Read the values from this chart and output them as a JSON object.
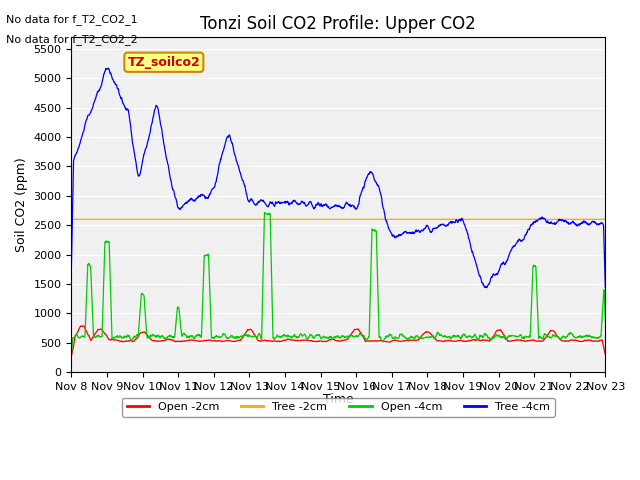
{
  "title": "Tonzi Soil CO2 Profile: Upper CO2",
  "ylabel": "Soil CO2 (ppm)",
  "xlabel": "Time",
  "annotations": [
    "No data for f_T2_CO2_1",
    "No data for f_T2_CO2_2"
  ],
  "legend_label": "TZ_soilco2",
  "legend_entries": [
    "Open -2cm",
    "Tree -2cm",
    "Open -4cm",
    "Tree -4cm"
  ],
  "legend_colors": [
    "#ff0000",
    "#ffa500",
    "#00cc00",
    "#0000ff"
  ],
  "ylim": [
    0,
    5700
  ],
  "yticks": [
    0,
    500,
    1000,
    1500,
    2000,
    2500,
    3000,
    3500,
    4000,
    4500,
    5000,
    5500
  ],
  "background_color": "#ffffff",
  "plot_bg": "#f0f0f0",
  "title_fontsize": 12,
  "axis_fontsize": 9,
  "figsize": [
    6.4,
    4.8
  ],
  "dpi": 100
}
